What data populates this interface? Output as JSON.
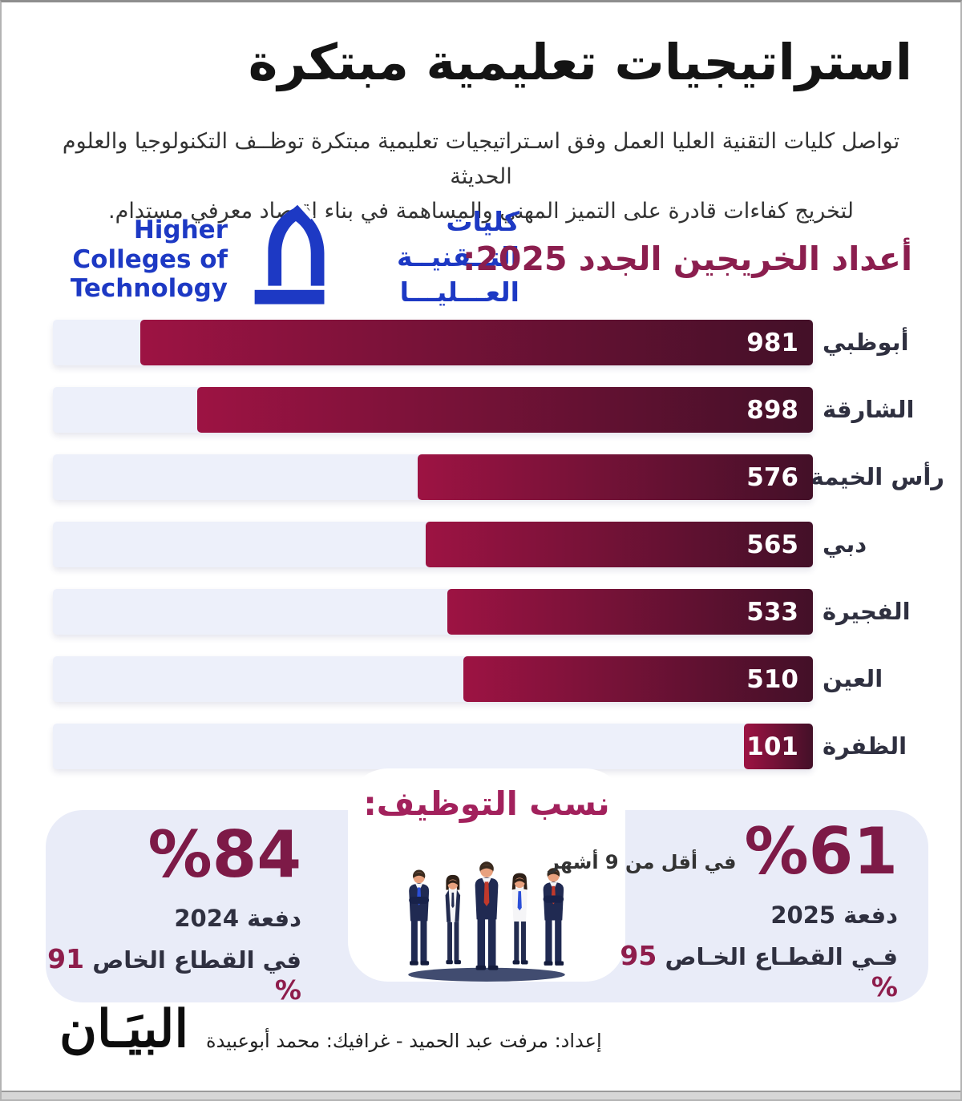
{
  "page": {
    "title": "استراتيجيات تعليمية مبتكرة",
    "subtitle_line1": "تواصل كليات التقنية العليا العمل وفق اسـتراتيجيات تعليمية مبتكرة توظــف التكنولوجيا والعلوم الحديثة",
    "subtitle_line2": "لتخريج كفاءات قادرة على التميز المهني والمساهمة في بناء اقتصاد معرفي مستدام."
  },
  "logo": {
    "english_line1": "Higher",
    "english_line2": "Colleges of",
    "english_line3": "Technology",
    "arabic_line1": "كليات",
    "arabic_line2": "التــقنيــة",
    "arabic_line3": "العـــليـــا",
    "brand_color": "#1d39c4"
  },
  "chart_data": {
    "type": "bar",
    "orientation": "horizontal_rtl",
    "title": "أعداد الخريجين الجدد 2025:",
    "categories": [
      "أبوظبي",
      "الشارقة",
      "رأس الخيمة",
      "دبي",
      "الفجيرة",
      "العين",
      "الظفرة"
    ],
    "values": [
      981,
      898,
      576,
      565,
      533,
      510,
      101
    ],
    "value_labels": [
      "981",
      "898",
      "576",
      "565",
      "533",
      "510",
      "101"
    ],
    "max_value": 981,
    "max_fill_ratio": 0.885,
    "bar_gradient": [
      "#9d1343",
      "#431028"
    ],
    "track_color": "#edf0fa",
    "grid": false,
    "legend": false
  },
  "employment": {
    "heading": "نسب التوظيف:",
    "left_card": {
      "percent": "%84",
      "batch": "دفعة 2024",
      "private_percent": "91 %",
      "private_label": "في القطاع الخاص"
    },
    "right_card": {
      "percent": "%61",
      "percent_note": "في أقل من 9 أشهر",
      "batch": "دفعة  2025",
      "private_percent": "95 %",
      "private_label": "فـي القطـاع الخـاص"
    }
  },
  "footer": {
    "credit": "إعداد: مرفت عبد الحميد - غرافيك: محمد أبوعبيدة",
    "brand": "البيَـان"
  },
  "colors": {
    "heading_maroon": "#8b1e4e",
    "employment_heading": "#a2215c",
    "percent_maroon": "#7d1a47",
    "card_bg": "#e9ecf8",
    "text_dark": "#2f3040",
    "hct_blue": "#1d39c4"
  }
}
